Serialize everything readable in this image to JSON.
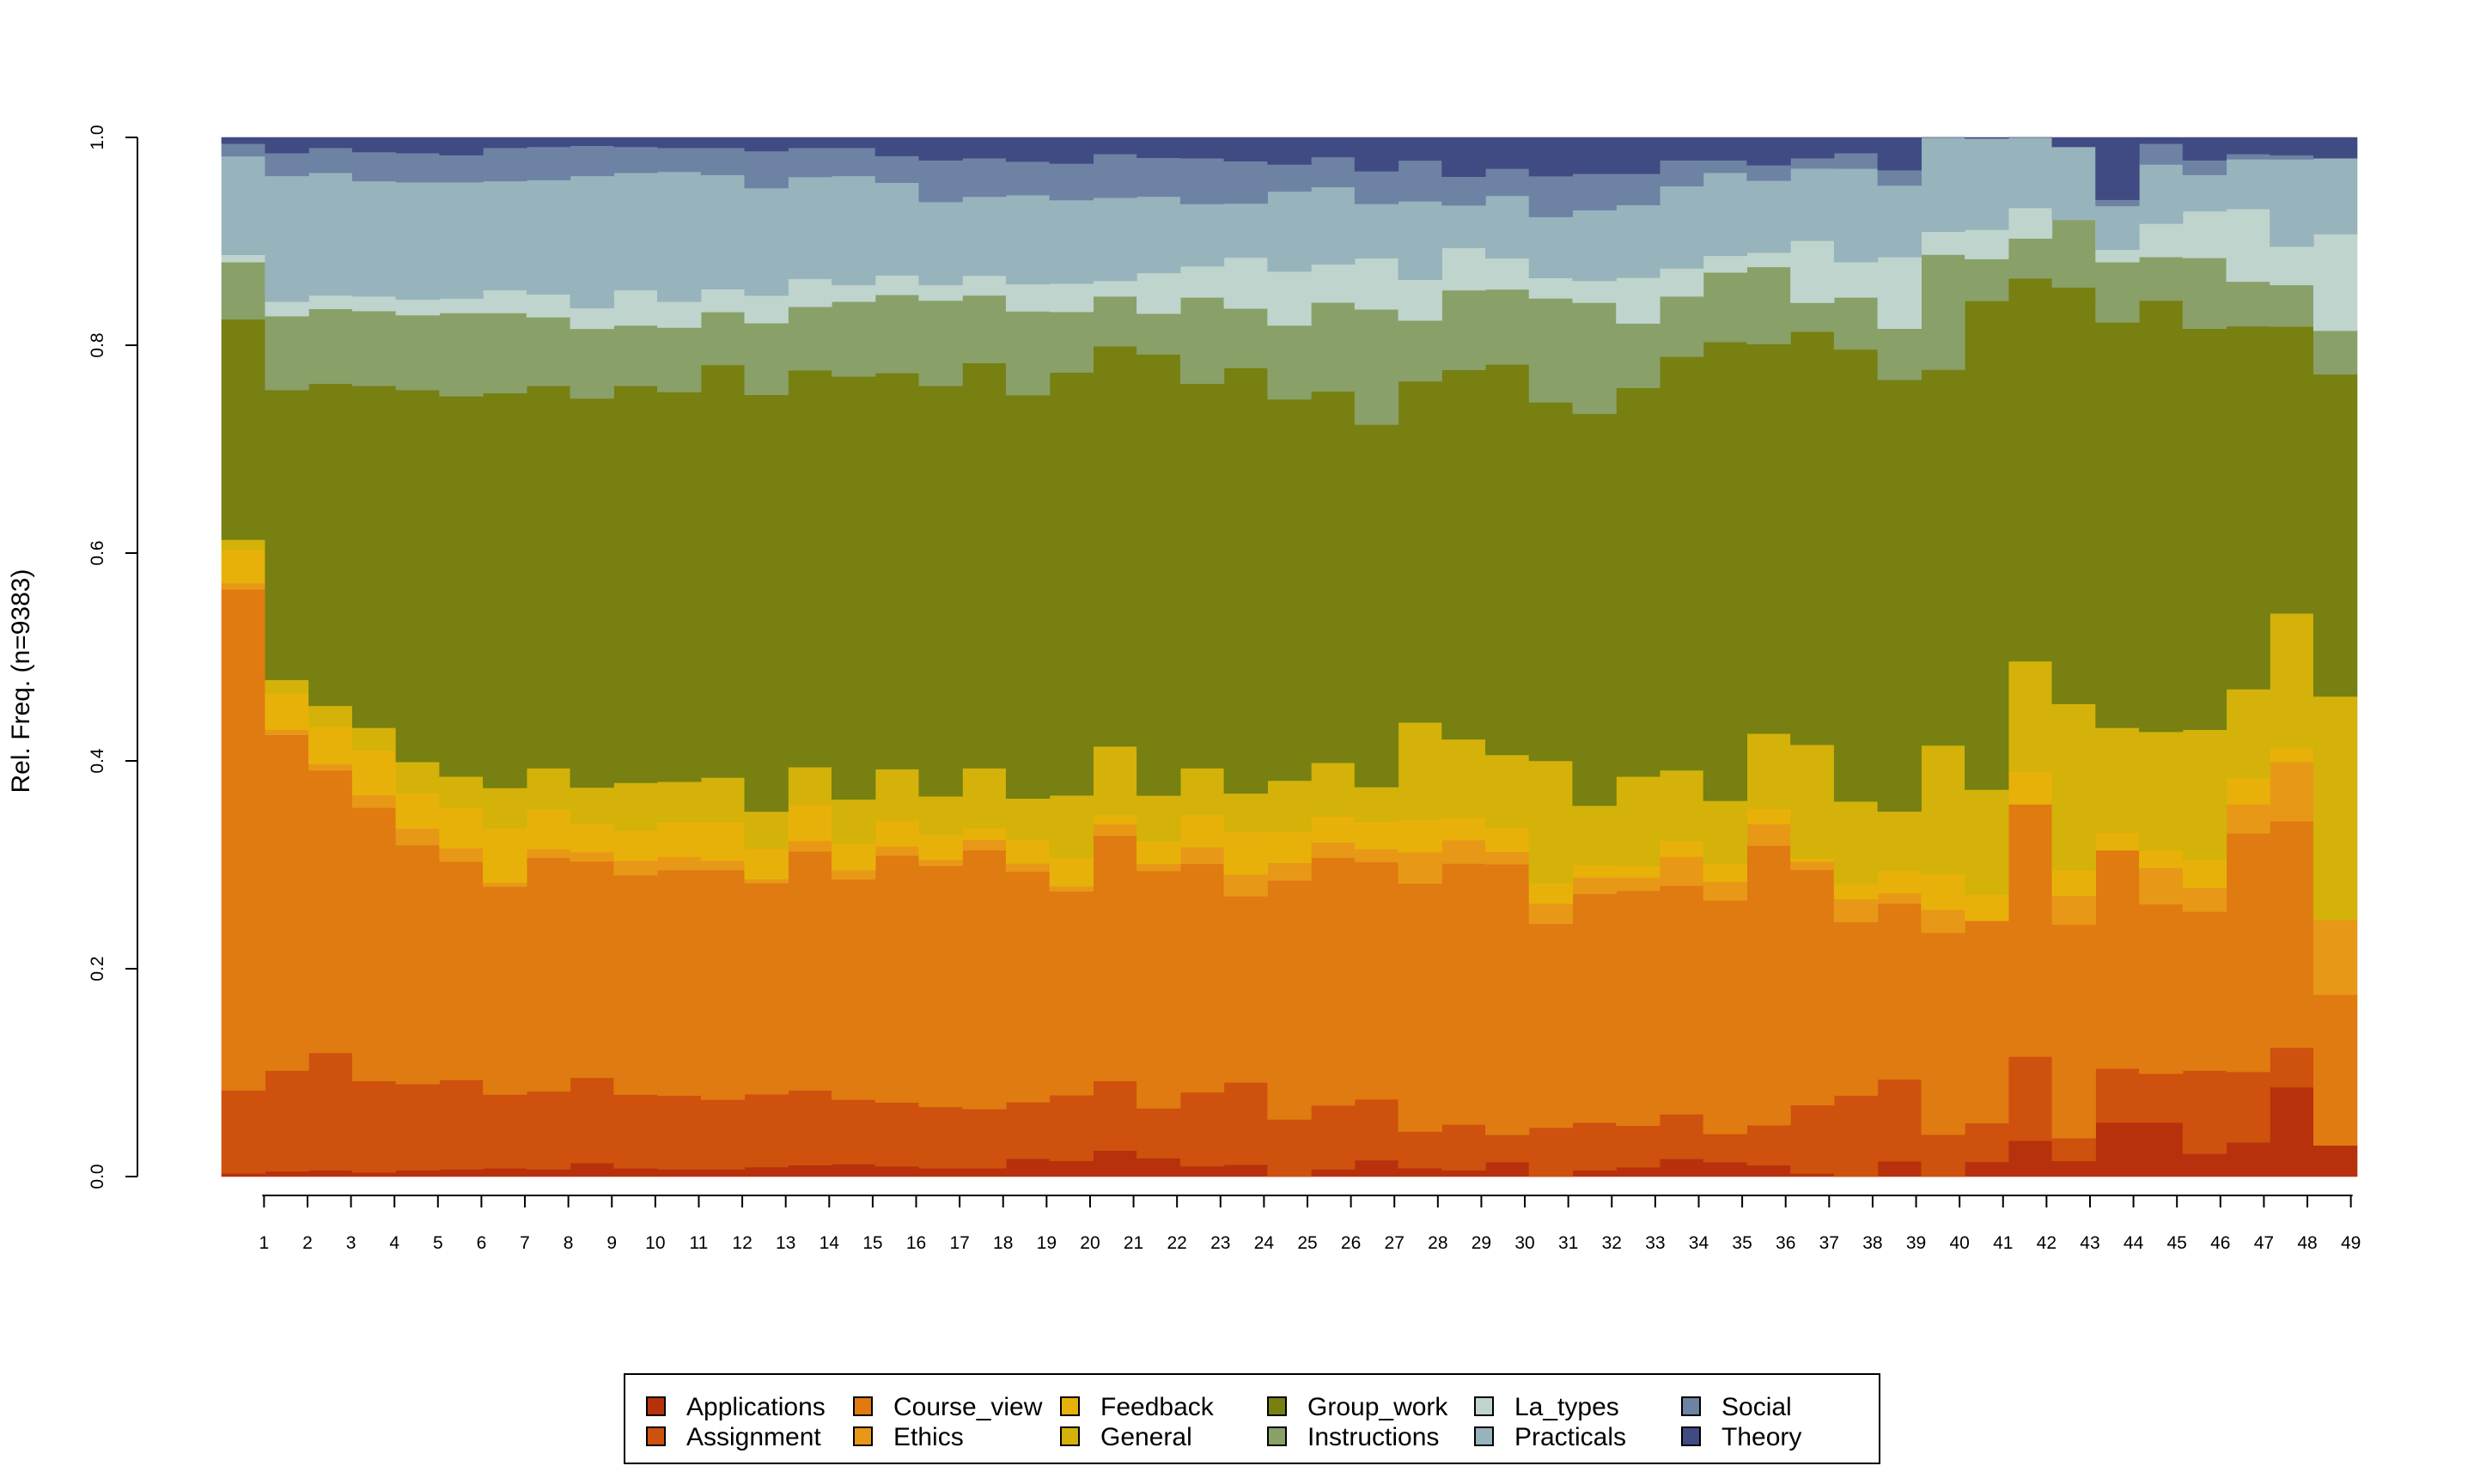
{
  "chart_data": {
    "type": "area",
    "title": "",
    "xlabel": "",
    "ylabel": "Rel. Freq. (n=9383)",
    "ylim": [
      0,
      1
    ],
    "yticks": [
      "0.0",
      "0.2",
      "0.4",
      "0.6",
      "0.8",
      "1.0"
    ],
    "grid": false,
    "legend_position": "bottom",
    "x": [
      1,
      2,
      3,
      4,
      5,
      6,
      7,
      8,
      9,
      10,
      11,
      12,
      13,
      14,
      15,
      16,
      17,
      18,
      19,
      20,
      21,
      22,
      23,
      24,
      25,
      26,
      27,
      28,
      29,
      30,
      31,
      32,
      33,
      34,
      35,
      36,
      37,
      38,
      39,
      40,
      41,
      42,
      43,
      44,
      45,
      46,
      47,
      48,
      49
    ],
    "series": [
      {
        "name": "Applications",
        "color": "#B7310C",
        "values": [
          0.003,
          0.005,
          0.006,
          0.004,
          0.006,
          0.007,
          0.008,
          0.007,
          0.013,
          0.008,
          0.007,
          0.007,
          0.009,
          0.011,
          0.012,
          0.01,
          0.008,
          0.008,
          0.017,
          0.015,
          0.025,
          0.018,
          0.01,
          0.011,
          0.0,
          0.007,
          0.015,
          0.008,
          0.006,
          0.014,
          0.0,
          0.006,
          0.009,
          0.017,
          0.014,
          0.011,
          0.003,
          0.0,
          0.015,
          0.0,
          0.014,
          0.034,
          0.015,
          0.052,
          0.052,
          0.022,
          0.033,
          0.086,
          0.03
        ]
      },
      {
        "name": "Assignment",
        "color": "#CE510E",
        "values": [
          0.08,
          0.097,
          0.113,
          0.088,
          0.083,
          0.086,
          0.071,
          0.075,
          0.082,
          0.071,
          0.071,
          0.067,
          0.069,
          0.072,
          0.062,
          0.062,
          0.059,
          0.057,
          0.054,
          0.063,
          0.067,
          0.049,
          0.071,
          0.076,
          0.055,
          0.062,
          0.056,
          0.035,
          0.043,
          0.026,
          0.048,
          0.046,
          0.04,
          0.043,
          0.027,
          0.039,
          0.066,
          0.078,
          0.08,
          0.04,
          0.037,
          0.08,
          0.022,
          0.052,
          0.047,
          0.08,
          0.068,
          0.038,
          0.0
        ]
      },
      {
        "name": "Course_view",
        "color": "#DF7B10",
        "values": [
          0.482,
          0.323,
          0.272,
          0.263,
          0.23,
          0.21,
          0.2,
          0.225,
          0.208,
          0.211,
          0.217,
          0.221,
          0.2,
          0.23,
          0.212,
          0.24,
          0.232,
          0.249,
          0.22,
          0.195,
          0.236,
          0.233,
          0.22,
          0.172,
          0.23,
          0.24,
          0.218,
          0.237,
          0.246,
          0.26,
          0.2,
          0.22,
          0.226,
          0.22,
          0.225,
          0.272,
          0.228,
          0.167,
          0.172,
          0.193,
          0.193,
          0.24,
          0.205,
          0.21,
          0.163,
          0.153,
          0.23,
          0.218,
          0.145
        ]
      },
      {
        "name": "Ethics",
        "color": "#E89817",
        "values": [
          0.006,
          0.005,
          0.006,
          0.012,
          0.016,
          0.013,
          0.004,
          0.008,
          0.009,
          0.014,
          0.013,
          0.009,
          0.004,
          0.01,
          0.009,
          0.009,
          0.006,
          0.01,
          0.008,
          0.005,
          0.011,
          0.007,
          0.016,
          0.02,
          0.017,
          0.015,
          0.012,
          0.03,
          0.022,
          0.012,
          0.02,
          0.016,
          0.013,
          0.028,
          0.018,
          0.021,
          0.008,
          0.022,
          0.01,
          0.022,
          0.0,
          0.0,
          0.028,
          0.0,
          0.035,
          0.023,
          0.028,
          0.057,
          0.072
        ]
      },
      {
        "name": "Feedback",
        "color": "#E8B10A",
        "values": [
          0.032,
          0.035,
          0.036,
          0.043,
          0.034,
          0.039,
          0.052,
          0.038,
          0.027,
          0.029,
          0.033,
          0.037,
          0.029,
          0.035,
          0.025,
          0.025,
          0.024,
          0.011,
          0.022,
          0.027,
          0.009,
          0.022,
          0.031,
          0.039,
          0.03,
          0.025,
          0.025,
          0.031,
          0.021,
          0.023,
          0.02,
          0.012,
          0.011,
          0.015,
          0.017,
          0.015,
          0.003,
          0.014,
          0.022,
          0.034,
          0.025,
          0.031,
          0.024,
          0.017,
          0.017,
          0.027,
          0.025,
          0.013,
          0.0
        ]
      },
      {
        "name": "General",
        "color": "#D4B209",
        "values": [
          0.01,
          0.013,
          0.02,
          0.022,
          0.03,
          0.03,
          0.039,
          0.04,
          0.035,
          0.046,
          0.039,
          0.043,
          0.035,
          0.036,
          0.043,
          0.05,
          0.037,
          0.058,
          0.04,
          0.06,
          0.066,
          0.045,
          0.045,
          0.036,
          0.049,
          0.052,
          0.032,
          0.093,
          0.074,
          0.07,
          0.12,
          0.057,
          0.086,
          0.068,
          0.061,
          0.073,
          0.11,
          0.08,
          0.058,
          0.123,
          0.1,
          0.105,
          0.16,
          0.101,
          0.114,
          0.125,
          0.086,
          0.13,
          0.215
        ]
      },
      {
        "name": "Group_work",
        "color": "#778011",
        "values": [
          0.212,
          0.279,
          0.31,
          0.329,
          0.358,
          0.366,
          0.38,
          0.368,
          0.374,
          0.382,
          0.375,
          0.397,
          0.395,
          0.382,
          0.407,
          0.385,
          0.395,
          0.39,
          0.385,
          0.405,
          0.385,
          0.433,
          0.37,
          0.393,
          0.367,
          0.36,
          0.333,
          0.326,
          0.348,
          0.375,
          0.352,
          0.377,
          0.374,
          0.398,
          0.442,
          0.379,
          0.4,
          0.435,
          0.422,
          0.359,
          0.466,
          0.364,
          0.4,
          0.39,
          0.415,
          0.386,
          0.35,
          0.276,
          0.31
        ]
      },
      {
        "name": "Instructions",
        "color": "#89A068",
        "values": [
          0.055,
          0.071,
          0.072,
          0.072,
          0.072,
          0.08,
          0.077,
          0.066,
          0.067,
          0.058,
          0.062,
          0.051,
          0.068,
          0.061,
          0.072,
          0.076,
          0.082,
          0.065,
          0.08,
          0.058,
          0.048,
          0.04,
          0.083,
          0.055,
          0.071,
          0.086,
          0.106,
          0.058,
          0.075,
          0.072,
          0.102,
          0.107,
          0.062,
          0.058,
          0.067,
          0.075,
          0.028,
          0.05,
          0.05,
          0.11,
          0.04,
          0.038,
          0.065,
          0.058,
          0.042,
          0.068,
          0.043,
          0.04,
          0.042
        ]
      },
      {
        "name": "La_types",
        "color": "#BFD4CC",
        "values": [
          0.007,
          0.014,
          0.013,
          0.014,
          0.015,
          0.014,
          0.022,
          0.022,
          0.02,
          0.034,
          0.025,
          0.022,
          0.026,
          0.027,
          0.016,
          0.019,
          0.015,
          0.019,
          0.026,
          0.027,
          0.015,
          0.04,
          0.03,
          0.047,
          0.052,
          0.037,
          0.047,
          0.039,
          0.04,
          0.03,
          0.02,
          0.021,
          0.044,
          0.027,
          0.016,
          0.014,
          0.06,
          0.034,
          0.07,
          0.022,
          0.028,
          0.029,
          0.0,
          0.012,
          0.032,
          0.045,
          0.07,
          0.037,
          0.093
        ]
      },
      {
        "name": "Practicals",
        "color": "#97B3BC",
        "values": [
          0.095,
          0.121,
          0.118,
          0.111,
          0.113,
          0.112,
          0.105,
          0.11,
          0.127,
          0.113,
          0.125,
          0.11,
          0.102,
          0.098,
          0.105,
          0.09,
          0.08,
          0.076,
          0.085,
          0.08,
          0.08,
          0.075,
          0.06,
          0.05,
          0.077,
          0.075,
          0.05,
          0.075,
          0.04,
          0.06,
          0.06,
          0.068,
          0.07,
          0.079,
          0.08,
          0.07,
          0.07,
          0.09,
          0.07,
          0.09,
          0.087,
          0.067,
          0.07,
          0.042,
          0.057,
          0.035,
          0.048,
          0.084,
          0.073
        ]
      },
      {
        "name": "Social",
        "color": "#6E82A4",
        "values": [
          0.012,
          0.022,
          0.024,
          0.028,
          0.028,
          0.026,
          0.032,
          0.032,
          0.029,
          0.025,
          0.023,
          0.026,
          0.035,
          0.028,
          0.027,
          0.026,
          0.04,
          0.037,
          0.032,
          0.035,
          0.042,
          0.038,
          0.044,
          0.039,
          0.026,
          0.029,
          0.03,
          0.039,
          0.027,
          0.026,
          0.04,
          0.035,
          0.03,
          0.025,
          0.012,
          0.015,
          0.01,
          0.015,
          0.015,
          0.0,
          0.0,
          0.0,
          0.0,
          0.006,
          0.02,
          0.014,
          0.005,
          0.004,
          0.0
        ]
      },
      {
        "name": "Theory",
        "color": "#414B83",
        "values": [
          0.006,
          0.015,
          0.01,
          0.014,
          0.015,
          0.017,
          0.01,
          0.009,
          0.008,
          0.009,
          0.01,
          0.01,
          0.013,
          0.01,
          0.01,
          0.018,
          0.022,
          0.02,
          0.023,
          0.025,
          0.016,
          0.02,
          0.02,
          0.022,
          0.026,
          0.019,
          0.031,
          0.022,
          0.037,
          0.03,
          0.038,
          0.035,
          0.035,
          0.022,
          0.022,
          0.027,
          0.02,
          0.015,
          0.032,
          0.0,
          0.001,
          0.0,
          0.009,
          0.06,
          0.006,
          0.022,
          0.016,
          0.017,
          0.02
        ]
      }
    ]
  }
}
